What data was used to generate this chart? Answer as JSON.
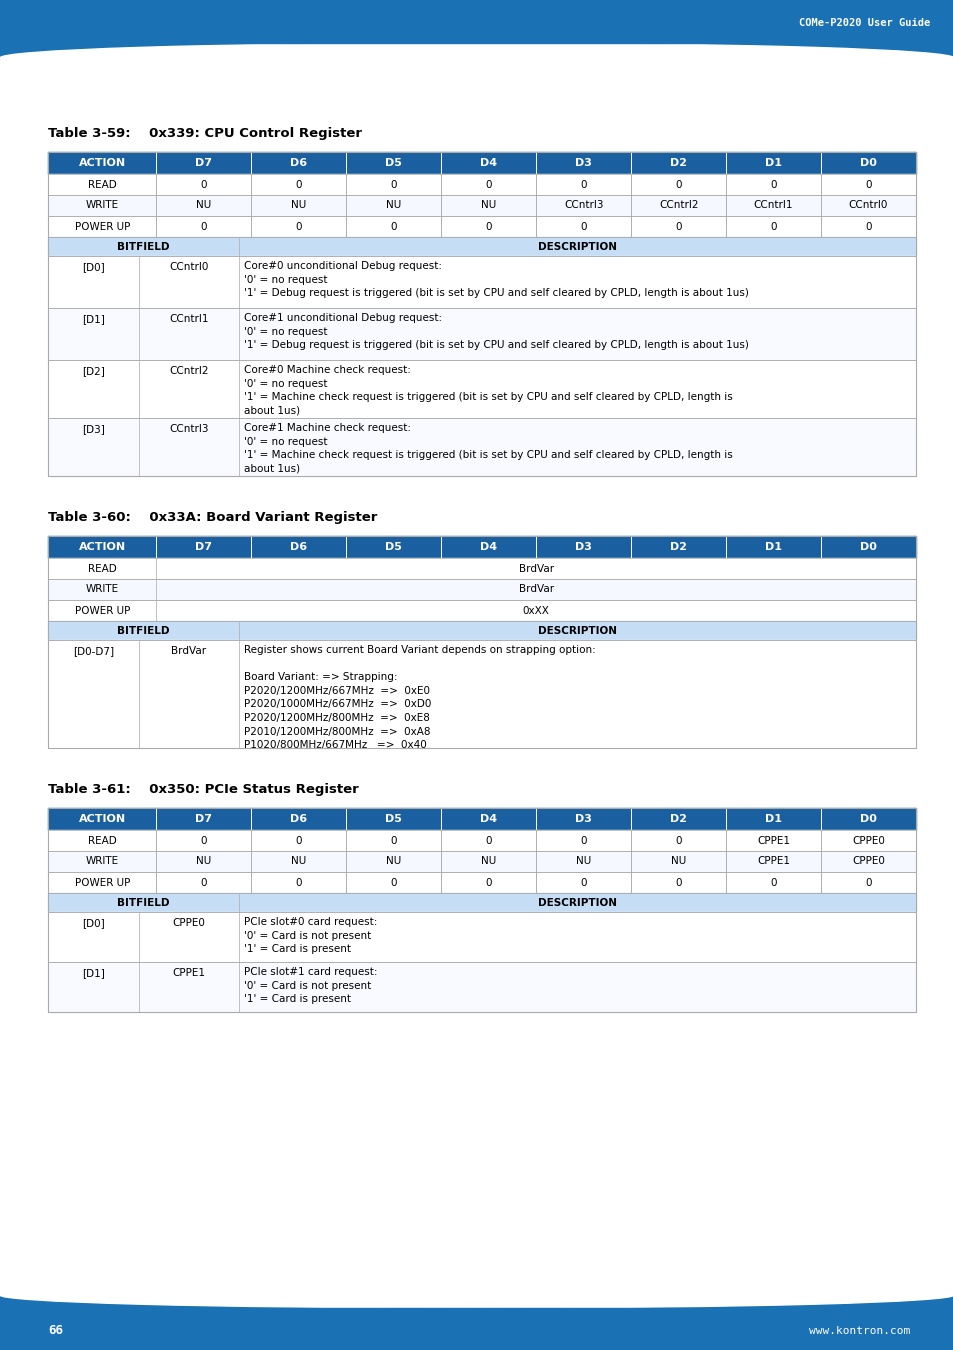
{
  "page_bg": "#ffffff",
  "header_bg": "#1a72b5",
  "header_title": "COMe-P2020 User Guide",
  "footer_bg": "#1a72b5",
  "footer_page": "66",
  "footer_url": "www.kontron.com",
  "table_header_bg": "#1a5fa0",
  "table_subheader_bg": "#c5ddf5",
  "table_border": "#aaaaaa",
  "table_header_text": "#ffffff",
  "table_subheader_text": "#000000",
  "table59_title": "Table 3-59:    0x339: CPU Control Register",
  "table59_col_headers": [
    "ACTION",
    "D7",
    "D6",
    "D5",
    "D4",
    "D3",
    "D2",
    "D1",
    "D0"
  ],
  "table59_rows": [
    [
      "READ",
      "0",
      "0",
      "0",
      "0",
      "0",
      "0",
      "0",
      "0"
    ],
    [
      "WRITE",
      "NU",
      "NU",
      "NU",
      "NU",
      "CCntrl3",
      "CCntrl2",
      "CCntrl1",
      "CCntrl0"
    ],
    [
      "POWER UP",
      "0",
      "0",
      "0",
      "0",
      "0",
      "0",
      "0",
      "0"
    ]
  ],
  "table59_bitfield_rows": [
    [
      "[D0]",
      "CCntrl0",
      "Core#0 unconditional Debug request:\n'0' = no request\n'1' = Debug request is triggered (bit is set by CPU and self cleared by CPLD, length is about 1us)"
    ],
    [
      "[D1]",
      "CCntrl1",
      "Core#1 unconditional Debug request:\n'0' = no request\n'1' = Debug request is triggered (bit is set by CPU and self cleared by CPLD, length is about 1us)"
    ],
    [
      "[D2]",
      "CCntrl2",
      "Core#0 Machine check request:\n'0' = no request\n'1' = Machine check request is triggered (bit is set by CPU and self cleared by CPLD, length is\nabout 1us)"
    ],
    [
      "[D3]",
      "CCntrl3",
      "Core#1 Machine check request:\n'0' = no request\n'1' = Machine check request is triggered (bit is set by CPU and self cleared by CPLD, length is\nabout 1us)"
    ]
  ],
  "table60_title": "Table 3-60:    0x33A: Board Variant Register",
  "table60_col_headers": [
    "ACTION",
    "D7",
    "D6",
    "D5",
    "D4",
    "D3",
    "D2",
    "D1",
    "D0"
  ],
  "table60_rows": [
    [
      "READ",
      "BrdVar"
    ],
    [
      "WRITE",
      "BrdVar"
    ],
    [
      "POWER UP",
      "0xXX"
    ]
  ],
  "table60_bitfield_rows": [
    [
      "[D0-D7]",
      "BrdVar",
      "Register shows current Board Variant depends on strapping option:\n\nBoard Variant: => Strapping:\nP2020/1200MHz/667MHz  =>  0xE0\nP2020/1000MHz/667MHz  =>  0xD0\nP2020/1200MHz/800MHz  =>  0xE8\nP2010/1200MHz/800MHz  =>  0xA8\nP1020/800MHz/667MHz   =>  0x40"
    ]
  ],
  "table61_title": "Table 3-61:    0x350: PCIe Status Register",
  "table61_col_headers": [
    "ACTION",
    "D7",
    "D6",
    "D5",
    "D4",
    "D3",
    "D2",
    "D1",
    "D0"
  ],
  "table61_rows": [
    [
      "READ",
      "0",
      "0",
      "0",
      "0",
      "0",
      "0",
      "CPPE1",
      "CPPE0"
    ],
    [
      "WRITE",
      "NU",
      "NU",
      "NU",
      "NU",
      "NU",
      "NU",
      "CPPE1",
      "CPPE0"
    ],
    [
      "POWER UP",
      "0",
      "0",
      "0",
      "0",
      "0",
      "0",
      "0",
      "0"
    ]
  ],
  "table61_bitfield_rows": [
    [
      "[D0]",
      "CPPE0",
      "PCIe slot#0 card request:\n'0' = Card is not present\n'1' = Card is present"
    ],
    [
      "[D1]",
      "CPPE1",
      "PCIe slot#1 card request:\n'0' = Card is not present\n'1' = Card is present"
    ]
  ]
}
